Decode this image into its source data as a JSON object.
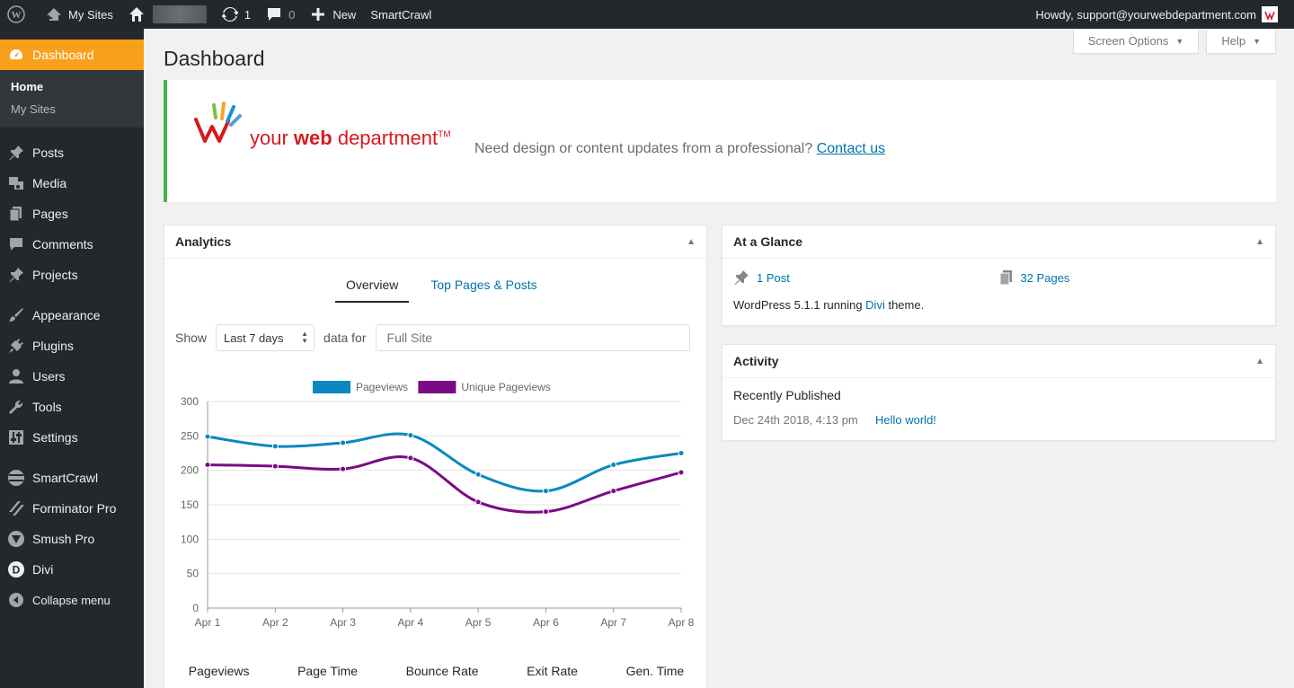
{
  "adminbar": {
    "my_sites": "My Sites",
    "updates_count": "1",
    "comments_count": "0",
    "new_label": "New",
    "smartcrawl": "SmartCrawl",
    "howdy": "Howdy, support@yourwebdepartment.com"
  },
  "sidebar": {
    "dashboard": "Dashboard",
    "sub_home": "Home",
    "sub_my_sites": "My Sites",
    "items": [
      {
        "label": "Posts",
        "icon": "pin-icon"
      },
      {
        "label": "Media",
        "icon": "media-icon"
      },
      {
        "label": "Pages",
        "icon": "pages-icon"
      },
      {
        "label": "Comments",
        "icon": "comment-icon"
      },
      {
        "label": "Projects",
        "icon": "pin-icon"
      },
      {
        "label": "Appearance",
        "icon": "brush-icon"
      },
      {
        "label": "Plugins",
        "icon": "plug-icon"
      },
      {
        "label": "Users",
        "icon": "user-icon"
      },
      {
        "label": "Tools",
        "icon": "wrench-icon"
      },
      {
        "label": "Settings",
        "icon": "sliders-icon"
      },
      {
        "label": "SmartCrawl",
        "icon": "smartcrawl-icon"
      },
      {
        "label": "Forminator Pro",
        "icon": "forminator-icon"
      },
      {
        "label": "Smush Pro",
        "icon": "smush-icon"
      },
      {
        "label": "Divi",
        "icon": "divi-icon"
      },
      {
        "label": "Collapse menu",
        "icon": "collapse-icon"
      }
    ]
  },
  "header": {
    "title": "Dashboard",
    "screen_options": "Screen Options",
    "help": "Help"
  },
  "banner": {
    "logo_text_prefix": "your ",
    "logo_text_bold": "web",
    "logo_text_suffix": " department",
    "logo_tm": "TM",
    "message": "Need design or content updates from a professional?",
    "link": "Contact us"
  },
  "analytics": {
    "title": "Analytics",
    "tab_overview": "Overview",
    "tab_top": "Top Pages & Posts",
    "show_label": "Show",
    "range_value": "Last 7 days",
    "data_for_label": "data for",
    "site_placeholder": "Full Site",
    "metrics": [
      "Pageviews",
      "Page Time",
      "Bounce Rate",
      "Exit Rate",
      "Gen. Time"
    ]
  },
  "chart_data": {
    "type": "line",
    "categories": [
      "Apr 1",
      "Apr 2",
      "Apr 3",
      "Apr 4",
      "Apr 5",
      "Apr 6",
      "Apr 7",
      "Apr 8"
    ],
    "ylim": [
      0,
      300
    ],
    "yticks": [
      0,
      50,
      100,
      150,
      200,
      250,
      300
    ],
    "legend_position": "top",
    "grid": true,
    "series": [
      {
        "name": "Pageviews",
        "color": "#0a88bf",
        "values": [
          249,
          235,
          240,
          251,
          194,
          170,
          208,
          225
        ]
      },
      {
        "name": "Unique Pageviews",
        "color": "#7b0a84",
        "values": [
          208,
          206,
          202,
          218,
          154,
          140,
          170,
          197
        ]
      }
    ]
  },
  "glance": {
    "title": "At a Glance",
    "posts": "1 Post",
    "pages": "32 Pages",
    "running_prefix": "WordPress 5.1.1 running ",
    "theme": "Divi",
    "running_suffix": " theme."
  },
  "activity": {
    "title": "Activity",
    "recent_label": "Recently Published",
    "date": "Dec 24th 2018, 4:13 pm",
    "post": "Hello world!"
  }
}
